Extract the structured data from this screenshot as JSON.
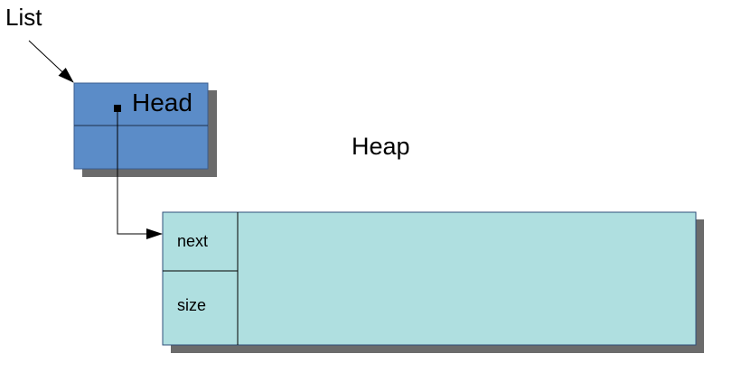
{
  "labels": {
    "list": "List",
    "head": "Head",
    "heap": "Heap",
    "next": "next",
    "size": "size"
  },
  "colors": {
    "list_node_fill": "#5b8cc8",
    "list_node_border": "#3a5d8f",
    "heap_block_fill": "#afdfe0",
    "heap_block_border": "#2f4f7a",
    "shadow": "#6b6b6b",
    "line": "#000000"
  }
}
